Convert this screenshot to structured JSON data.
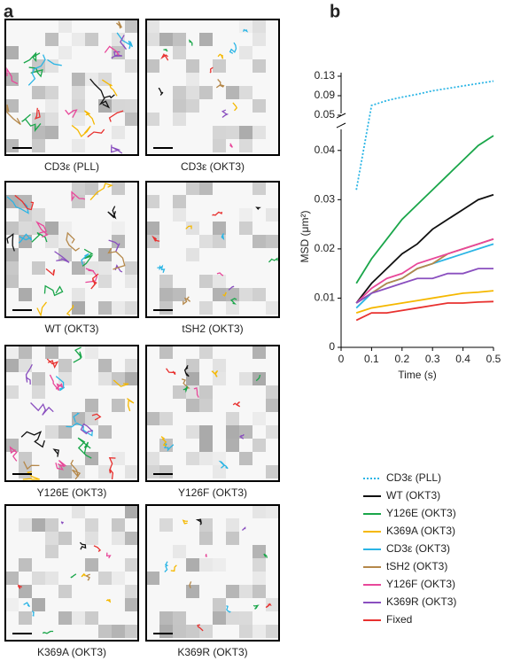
{
  "panel_labels": [
    "a",
    "b"
  ],
  "images": [
    {
      "caption": "CD3ε (PLL)"
    },
    {
      "caption": "CD3ε (OKT3)"
    },
    {
      "caption": "WT (OKT3)"
    },
    {
      "caption": "tSH2 (OKT3)"
    },
    {
      "caption": "Y126E (OKT3)"
    },
    {
      "caption": "Y126F (OKT3)"
    },
    {
      "caption": "K369A (OKT3)"
    },
    {
      "caption": "K369R (OKT3)"
    }
  ],
  "chart_data": {
    "type": "line",
    "xlabel": "Time (s)",
    "ylabel": "MSD (μm²)",
    "x": [
      0.05,
      0.1,
      0.15,
      0.2,
      0.25,
      0.3,
      0.35,
      0.4,
      0.45,
      0.5
    ],
    "xlim": [
      0,
      0.5
    ],
    "xticks": [
      0,
      0.1,
      0.2,
      0.3,
      0.4,
      0.5
    ],
    "ylim": [
      0,
      0.045
    ],
    "yticks": [
      0,
      0.01,
      0.02,
      0.03,
      0.04
    ],
    "y_upper_lim": [
      0.05,
      0.13
    ],
    "y_upper_ticks": [
      0.05,
      0.09,
      0.13
    ],
    "series": [
      {
        "name": "CD3ε (PLL)",
        "color": "#2bb5e5",
        "dashed": true,
        "values": [
          0.032,
          0.07,
          0.08,
          0.087,
          0.093,
          0.1,
          0.105,
          0.11,
          0.115,
          0.12
        ]
      },
      {
        "name": "WT (OKT3)",
        "color": "#111111",
        "values": [
          0.009,
          0.013,
          0.016,
          0.019,
          0.021,
          0.024,
          0.026,
          0.028,
          0.03,
          0.031
        ]
      },
      {
        "name": "Y126E (OKT3)",
        "color": "#1aa64a",
        "values": [
          0.013,
          0.018,
          0.022,
          0.026,
          0.029,
          0.032,
          0.035,
          0.038,
          0.041,
          0.043
        ]
      },
      {
        "name": "K369A (OKT3)",
        "color": "#f5b800",
        "values": [
          0.007,
          0.008,
          0.0085,
          0.009,
          0.0095,
          0.01,
          0.0105,
          0.011,
          0.0112,
          0.0115
        ]
      },
      {
        "name": "CD3ε (OKT3)",
        "color": "#2bb5e5",
        "values": [
          0.008,
          0.011,
          0.013,
          0.014,
          0.016,
          0.017,
          0.018,
          0.019,
          0.02,
          0.021
        ]
      },
      {
        "name": "tSH2 (OKT3)",
        "color": "#b5884a",
        "values": [
          0.009,
          0.011,
          0.013,
          0.014,
          0.016,
          0.017,
          0.019,
          0.02,
          0.021,
          0.022
        ]
      },
      {
        "name": "Y126F (OKT3)",
        "color": "#e8489a",
        "values": [
          0.009,
          0.012,
          0.014,
          0.015,
          0.017,
          0.018,
          0.019,
          0.02,
          0.021,
          0.022
        ]
      },
      {
        "name": "K369R (OKT3)",
        "color": "#8a4fbf",
        "values": [
          0.009,
          0.011,
          0.012,
          0.013,
          0.014,
          0.014,
          0.015,
          0.015,
          0.016,
          0.016
        ]
      },
      {
        "name": "Fixed",
        "color": "#e8312f",
        "values": [
          0.0055,
          0.007,
          0.007,
          0.0075,
          0.008,
          0.0085,
          0.009,
          0.009,
          0.0092,
          0.0093
        ]
      }
    ]
  }
}
